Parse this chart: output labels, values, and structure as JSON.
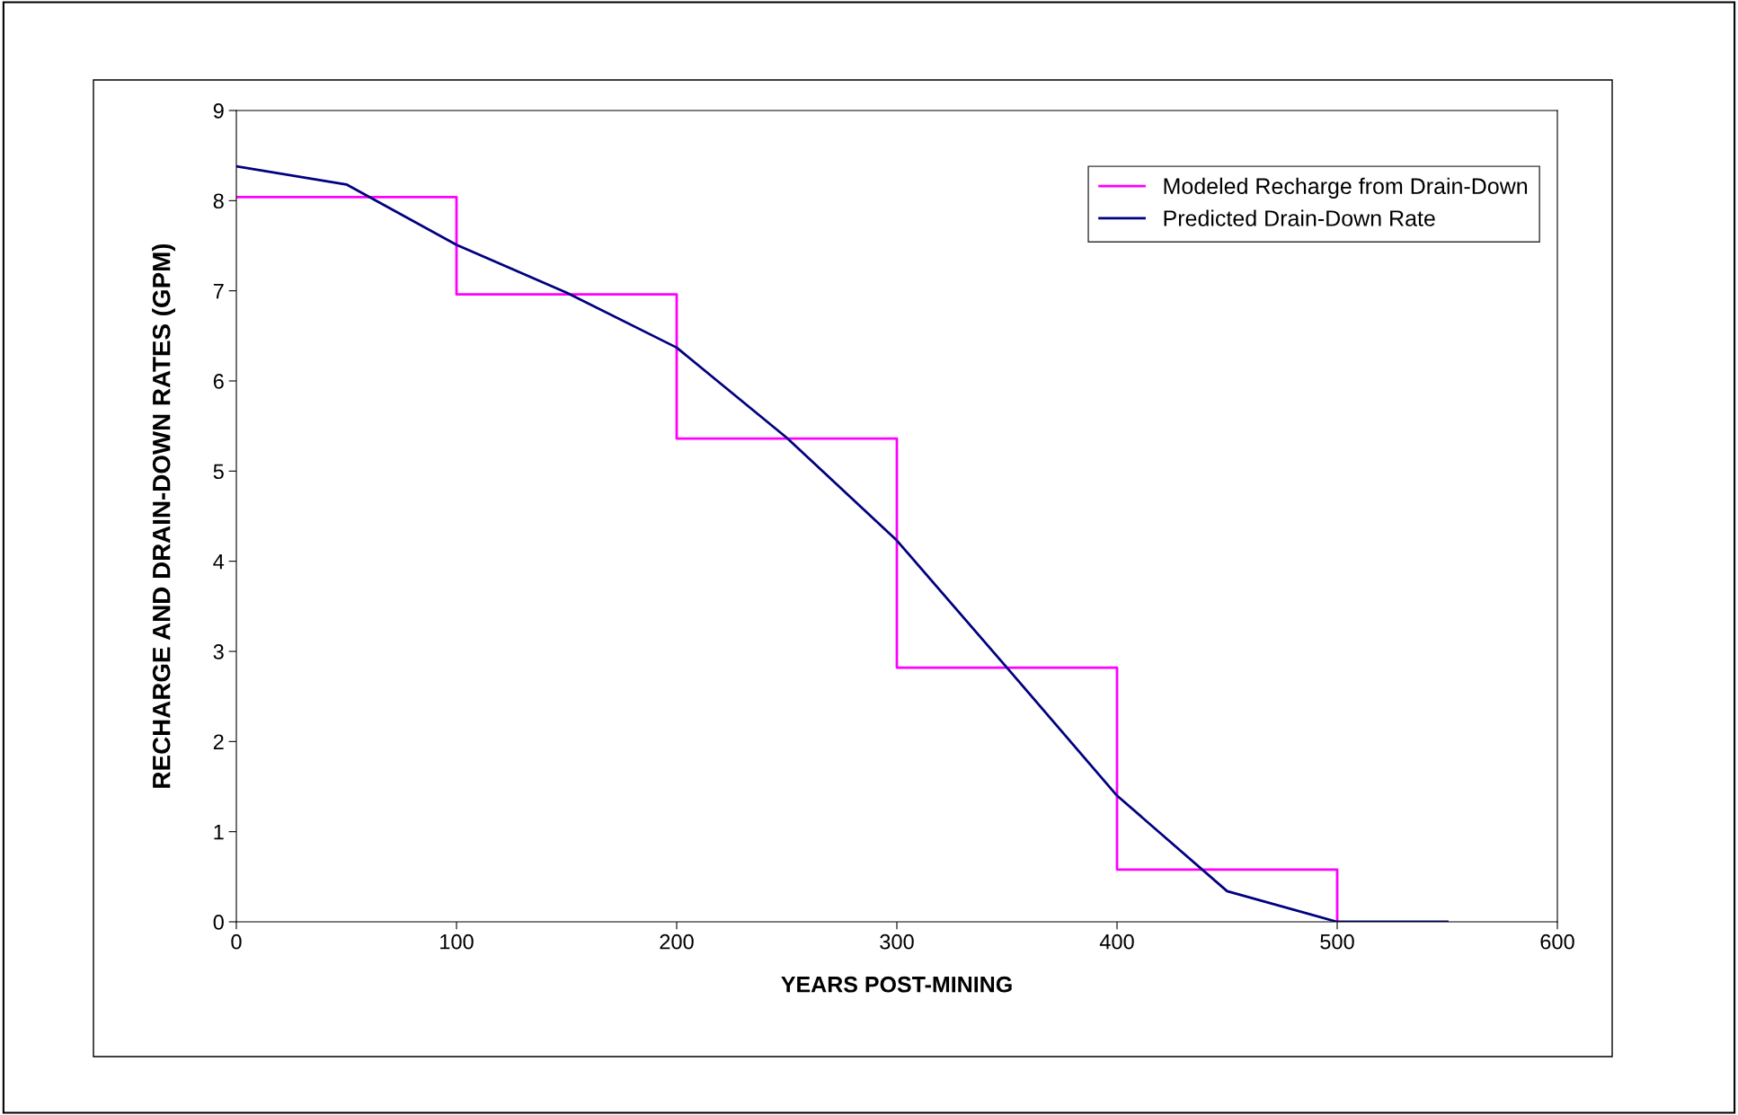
{
  "chart_data": {
    "type": "line",
    "xlabel": "YEARS POST-MINING",
    "ylabel": "RECHARGE AND DRAIN-DOWN RATES (GPM)",
    "series": [
      {
        "name": "Modeled Recharge from Drain-Down",
        "type": "step",
        "color": "#ff00ff",
        "x": [
          0,
          100,
          200,
          300,
          400,
          500
        ],
        "values": [
          8.04,
          6.96,
          5.36,
          2.82,
          0.58,
          0
        ]
      },
      {
        "name": "Predicted Drain-Down Rate",
        "color": "#000080",
        "x": [
          0,
          50,
          100,
          150,
          200,
          250,
          300,
          350,
          400,
          450,
          500,
          550
        ],
        "values": [
          8.38,
          8.18,
          7.51,
          6.98,
          6.37,
          5.37,
          4.23,
          2.82,
          1.4,
          0.34,
          0,
          0
        ]
      }
    ],
    "xlim": [
      0,
      600
    ],
    "xticks": [
      0,
      100,
      200,
      300,
      400,
      500,
      600
    ],
    "ylim": [
      0,
      9
    ],
    "yticks": [
      0,
      1,
      2,
      3,
      4,
      5,
      6,
      7,
      8,
      9
    ],
    "grid": false,
    "legend": "top right",
    "marker": "none",
    "line_style": "solid"
  }
}
